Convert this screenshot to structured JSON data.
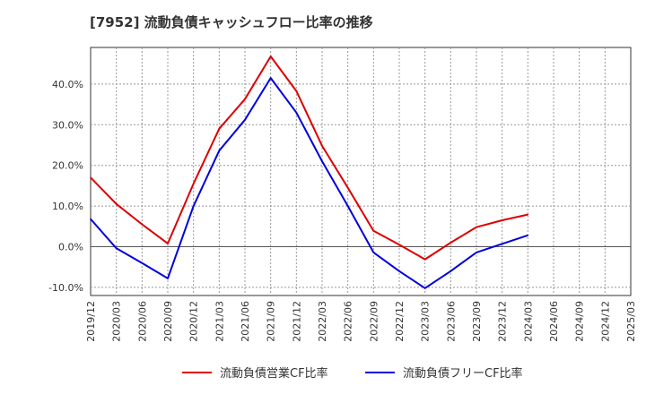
{
  "chart_data": {
    "type": "line",
    "title": "[7952]  流動負債キャッシュフロー比率の推移",
    "x": [
      "2019/12",
      "2020/03",
      "2020/06",
      "2020/09",
      "2020/12",
      "2021/03",
      "2021/06",
      "2021/09",
      "2021/12",
      "2022/03",
      "2022/06",
      "2022/09",
      "2022/12",
      "2023/03",
      "2023/06",
      "2023/09",
      "2023/12",
      "2024/03",
      "2024/06",
      "2024/09",
      "2024/12",
      "2025/03"
    ],
    "y_ticks": [
      -10,
      0,
      10,
      20,
      30,
      40
    ],
    "y_tick_labels": [
      "-10.0%",
      "0.0%",
      "10.0%",
      "20.0%",
      "30.0%",
      "40.0%"
    ],
    "ylim": [
      -12,
      49
    ],
    "grid": true,
    "legend_position": "bottom",
    "series": [
      {
        "name": "流動負債営業CF比率",
        "color": "#dd0000",
        "values": [
          17.0,
          10.5,
          5.5,
          0.8,
          15.5,
          29.0,
          36.3,
          46.8,
          38.3,
          24.8,
          14.5,
          3.9,
          0.5,
          -3.1,
          1.0,
          4.8,
          6.5,
          7.9,
          null,
          null,
          null,
          null
        ]
      },
      {
        "name": "流動負債フリーCF比率",
        "color": "#0000dd",
        "values": [
          6.8,
          -0.4,
          -4.0,
          -7.8,
          10.0,
          23.6,
          31.2,
          41.5,
          33.0,
          21.0,
          10.0,
          -1.4,
          -6.0,
          -10.2,
          -6.0,
          -1.4,
          0.7,
          2.8,
          null,
          null,
          null,
          null
        ]
      }
    ]
  }
}
